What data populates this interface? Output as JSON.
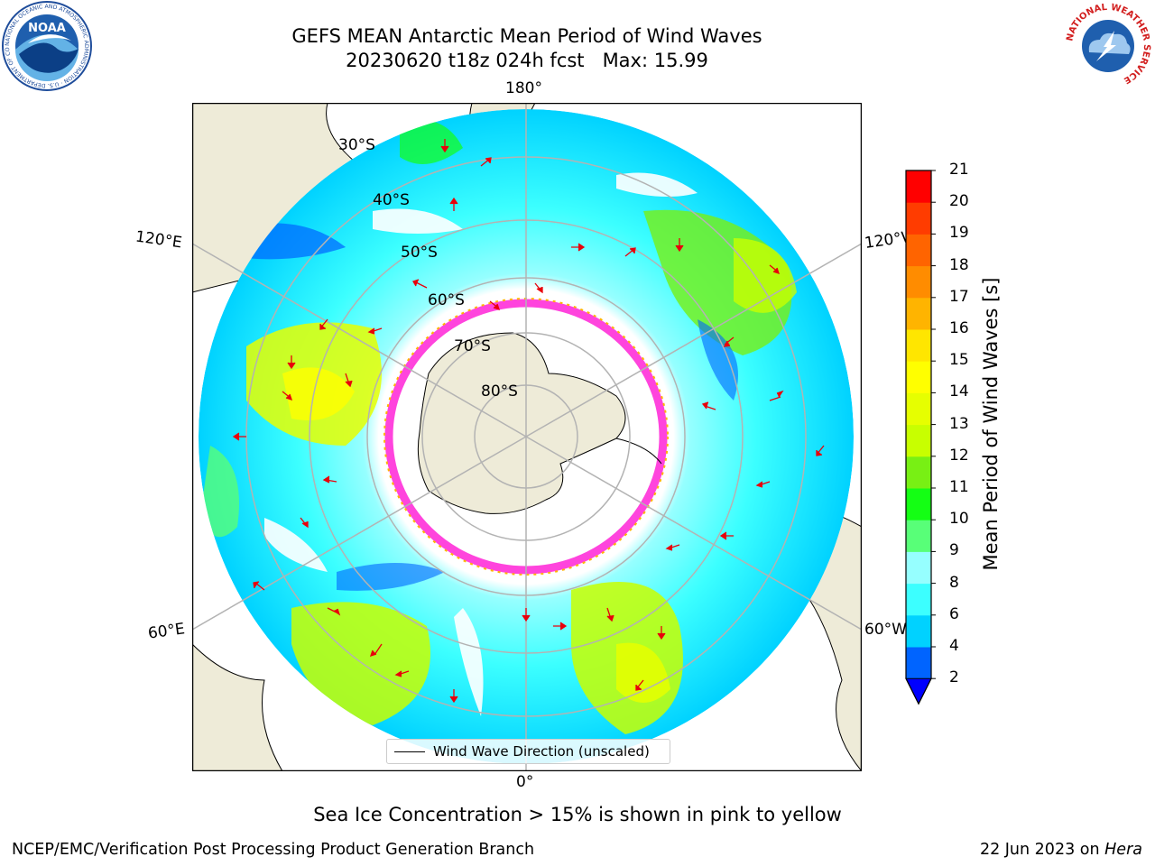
{
  "title": {
    "line1": "GEFS MEAN Antarctic Mean Period of Wind Waves",
    "line2": "20230620 t18z 024h fcst   Max: 15.99"
  },
  "map": {
    "projection": "south-polar-stereographic",
    "longitude_labels": [
      "180°",
      "120°E",
      "120°W",
      "60°E",
      "60°W",
      "0°"
    ],
    "latitude_labels": [
      "30°S",
      "40°S",
      "50°S",
      "60°S",
      "70°S",
      "80°S"
    ],
    "legend": "Wind Wave Direction (unscaled)",
    "colors": {
      "land": "#eeebd8",
      "ocean_no_data": "#ffffff",
      "grid": "#b3b3b3",
      "arrows": "#e8000b",
      "sea_ice": "#ff44dd"
    }
  },
  "colorbar": {
    "title": "Mean Period of Wind Waves [s]",
    "ticks": [
      "2",
      "4",
      "6",
      "8",
      "9",
      "10",
      "11",
      "12",
      "13",
      "14",
      "15",
      "16",
      "17",
      "18",
      "19",
      "20",
      "21"
    ],
    "colors": [
      "#0064ff",
      "#00d2ff",
      "#3cffff",
      "#96ffff",
      "#58ff78",
      "#14ff14",
      "#78f014",
      "#c8ff00",
      "#e6ff00",
      "#ffff00",
      "#ffe600",
      "#ffb400",
      "#ff8c00",
      "#ff6400",
      "#ff3c00",
      "#ff0000"
    ],
    "extend_below_color": "#0000ff"
  },
  "caption": "Sea Ice Concentration > 15% is shown in pink to yellow",
  "footer": {
    "left": "NCEP/EMC/Verification Post Processing Product Generation Branch",
    "right_prefix": "22 Jun 2023 on ",
    "right_machine": "Hera"
  },
  "logos": {
    "noaa": "NOAA",
    "noaa_ring": "NATIONAL OCEANIC AND ATMOSPHERIC ADMINISTRATION · U.S. DEPARTMENT OF COMMERCE ·",
    "nws_ring": "NATIONAL WEATHER SERVICE"
  }
}
